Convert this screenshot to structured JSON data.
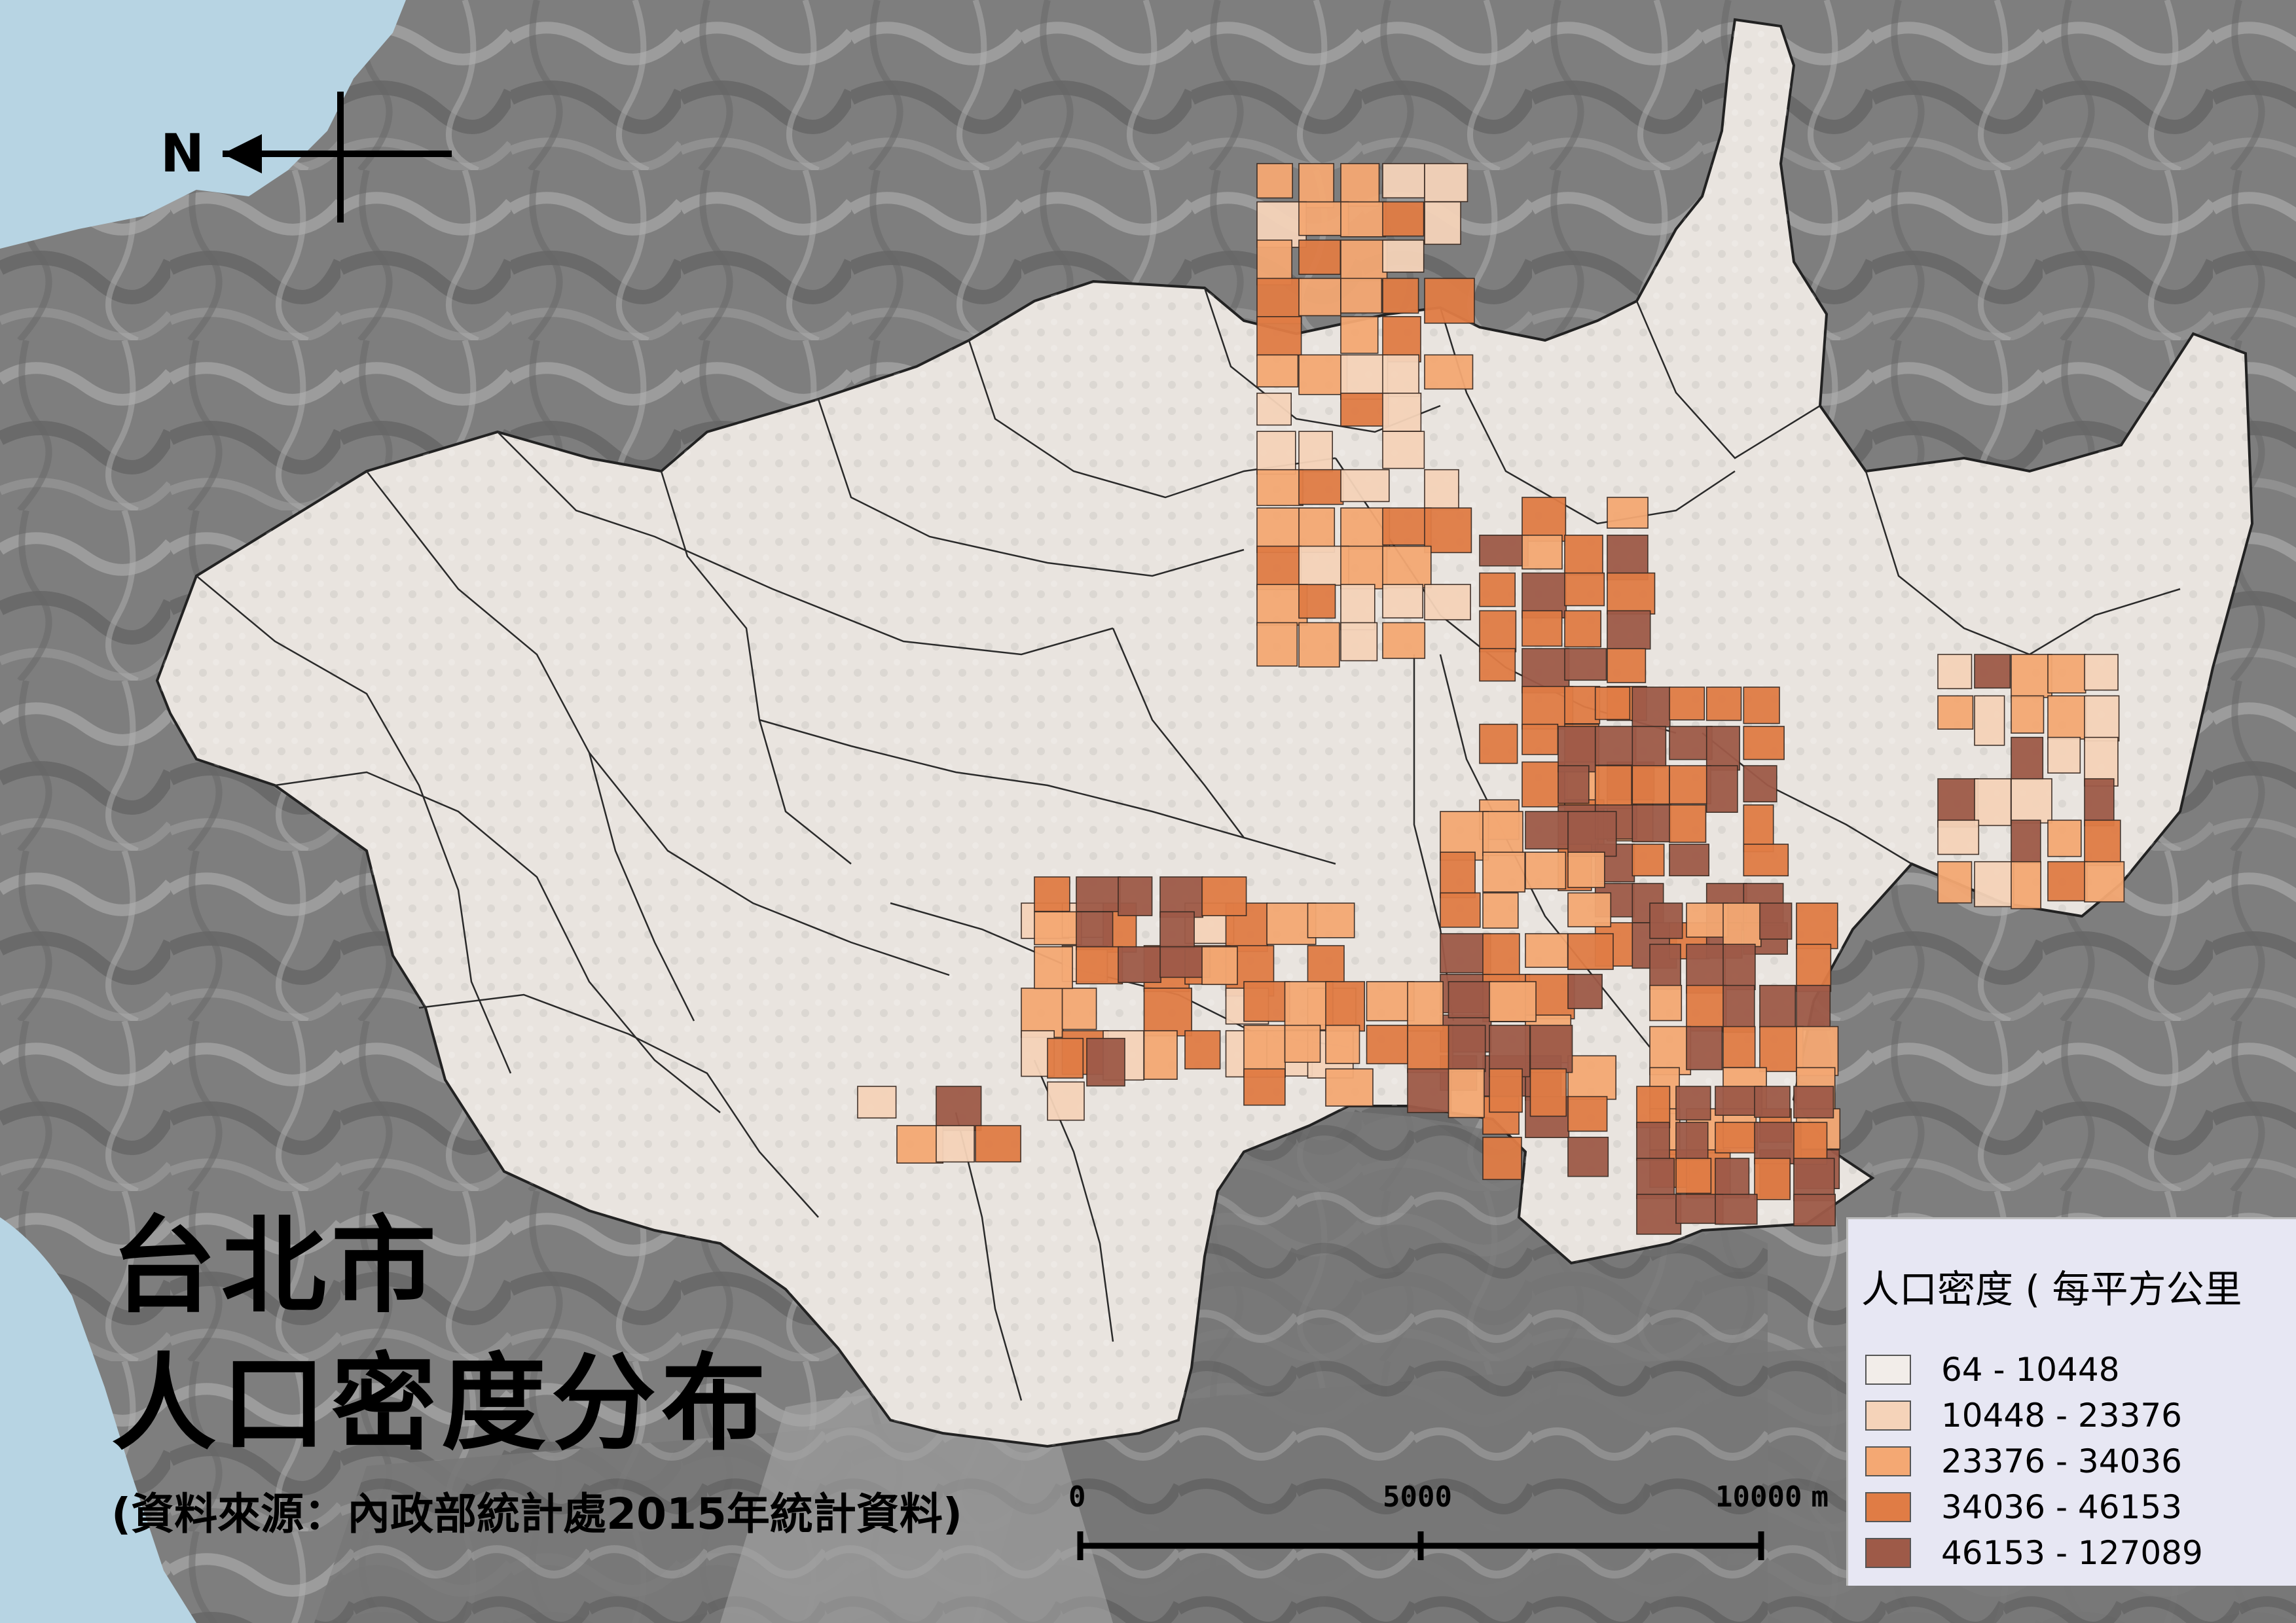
{
  "title": {
    "line1": "台北市",
    "line2": "人口密度分布",
    "source": "(資料來源：內政部統計處2015年統計資料)"
  },
  "north_arrow": {
    "label": "N"
  },
  "legend": {
    "title": "人口密度 ( 每平方公里",
    "classes": [
      {
        "label": "64 - 10448",
        "color": "#f2ede9"
      },
      {
        "label": "10448 - 23376",
        "color": "#f5d3b9"
      },
      {
        "label": "23376 - 34036",
        "color": "#f4a873"
      },
      {
        "label": "34036 - 46153",
        "color": "#e07c45"
      },
      {
        "label": "46153 - 127089",
        "color": "#9e5a48"
      }
    ]
  },
  "scale_bar": {
    "ticks": [
      {
        "label": "0",
        "value": 0
      },
      {
        "label": "5000",
        "value": 5000
      },
      {
        "label": "10000",
        "value": 10000
      }
    ],
    "unit": "m"
  },
  "colors": {
    "sea": "#b7d4e3",
    "terrain": "#7e7e7e",
    "terrain_light": "#a9a9a9",
    "city_base": "#e9e4df",
    "boundary": "#2a2a2a"
  }
}
